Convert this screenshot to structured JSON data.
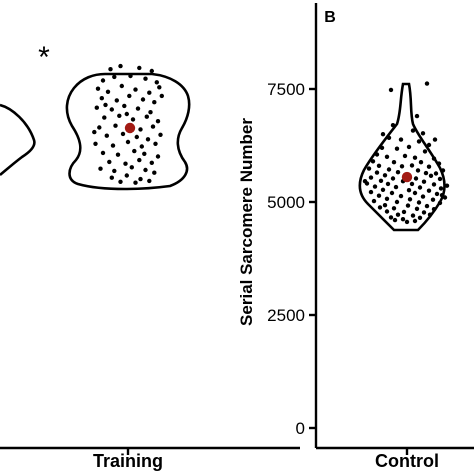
{
  "chart_data": [
    {
      "panel": "",
      "type": "scatter",
      "categories": [
        "Training"
      ],
      "annotation": "*",
      "note": "partial panel: truncated on the left edge; y-axis not visible",
      "violins": [
        {
          "category": "Training",
          "y_range": [
            5300,
            7950
          ],
          "mean": 6550
        },
        {
          "category": "",
          "y_range": [
            5450,
            6950
          ],
          "mean": null
        }
      ],
      "points": {
        "Training": [
          [
            -0.14,
            7850
          ],
          [
            -0.06,
            7920
          ],
          [
            0.09,
            7880
          ],
          [
            0.19,
            7810
          ],
          [
            -0.2,
            7600
          ],
          [
            -0.11,
            7680
          ],
          [
            0.02,
            7700
          ],
          [
            0.14,
            7640
          ],
          [
            0.23,
            7560
          ],
          [
            -0.24,
            7420
          ],
          [
            -0.16,
            7350
          ],
          [
            -0.05,
            7480
          ],
          [
            0.06,
            7400
          ],
          [
            0.17,
            7330
          ],
          [
            0.25,
            7450
          ],
          [
            -0.21,
            7210
          ],
          [
            -0.09,
            7160
          ],
          [
            0.01,
            7260
          ],
          [
            0.12,
            7180
          ],
          [
            0.21,
            7120
          ],
          [
            -0.25,
            7000
          ],
          [
            -0.13,
            6960
          ],
          [
            -0.03,
            7040
          ],
          [
            0.08,
            6980
          ],
          [
            0.18,
            6900
          ],
          [
            -0.19,
            6780
          ],
          [
            -0.07,
            6820
          ],
          [
            0.04,
            6740
          ],
          [
            0.15,
            6800
          ],
          [
            0.24,
            6700
          ],
          [
            -0.23,
            6560
          ],
          [
            -0.1,
            6600
          ],
          [
            0.1,
            6520
          ],
          [
            0.2,
            6580
          ],
          [
            -0.17,
            6380
          ],
          [
            -0.04,
            6420
          ],
          [
            0.07,
            6350
          ],
          [
            0.16,
            6300
          ],
          [
            0.26,
            6400
          ],
          [
            -0.26,
            6200
          ],
          [
            -0.12,
            6160
          ],
          [
            0.0,
            6240
          ],
          [
            0.11,
            6140
          ],
          [
            0.22,
            6200
          ],
          [
            -0.2,
            6000
          ],
          [
            -0.08,
            5960
          ],
          [
            0.05,
            6040
          ],
          [
            0.13,
            5980
          ],
          [
            0.24,
            5920
          ],
          [
            -0.15,
            5800
          ],
          [
            -0.02,
            5760
          ],
          [
            0.09,
            5840
          ],
          [
            0.19,
            5780
          ],
          [
            -0.22,
            5650
          ],
          [
            -0.11,
            5600
          ],
          [
            0.03,
            5680
          ],
          [
            0.14,
            5620
          ],
          [
            0.21,
            5560
          ],
          [
            -0.13,
            5450
          ],
          [
            -0.01,
            5500
          ],
          [
            0.1,
            5420
          ],
          [
            0.17,
            5380
          ],
          [
            -0.06,
            5360
          ],
          [
            0.06,
            5340
          ],
          [
            -0.18,
            7060
          ],
          [
            0.27,
            7260
          ],
          [
            -0.01,
            6860
          ],
          [
            -0.27,
            6460
          ]
        ]
      }
    },
    {
      "panel": "B",
      "type": "scatter",
      "categories": [
        "Control"
      ],
      "ylabel": "Serial Sarcomere Number",
      "y_ticks": [
        0,
        2500,
        5000,
        7500
      ],
      "ylim": [
        0,
        9400
      ],
      "violins": [
        {
          "category": "Control",
          "y_range": [
            4450,
            7750
          ],
          "mean": 5550
        }
      ],
      "points": {
        "Control": [
          [
            -0.16,
            7480
          ],
          [
            0.2,
            7620
          ],
          [
            0.1,
            6900
          ],
          [
            -0.14,
            6700
          ],
          [
            0.16,
            6520
          ],
          [
            0.06,
            6580
          ],
          [
            -0.18,
            6420
          ],
          [
            -0.06,
            6380
          ],
          [
            0.12,
            6340
          ],
          [
            0.22,
            6260
          ],
          [
            -0.25,
            6200
          ],
          [
            -0.1,
            6180
          ],
          [
            0.02,
            6220
          ],
          [
            0.18,
            6120
          ],
          [
            -0.3,
            6050
          ],
          [
            -0.2,
            6000
          ],
          [
            -0.02,
            6020
          ],
          [
            0.08,
            5980
          ],
          [
            0.27,
            5960
          ],
          [
            -0.34,
            5900
          ],
          [
            -0.13,
            5880
          ],
          [
            0.14,
            5880
          ],
          [
            0.32,
            5850
          ],
          [
            -0.28,
            5800
          ],
          [
            -0.05,
            5790
          ],
          [
            0.05,
            5810
          ],
          [
            0.22,
            5780
          ],
          [
            -0.38,
            5740
          ],
          [
            -0.18,
            5720
          ],
          [
            0.11,
            5700
          ],
          [
            0.36,
            5700
          ],
          [
            -0.3,
            5650
          ],
          [
            -0.09,
            5660
          ],
          [
            0.19,
            5640
          ],
          [
            0.29,
            5630
          ],
          [
            -0.22,
            5590
          ],
          [
            0.0,
            5600
          ],
          [
            0.24,
            5580
          ],
          [
            -0.36,
            5540
          ],
          [
            -0.14,
            5520
          ],
          [
            0.09,
            5520
          ],
          [
            0.33,
            5510
          ],
          [
            -0.26,
            5470
          ],
          [
            -0.04,
            5460
          ],
          [
            0.17,
            5450
          ],
          [
            -0.4,
            5410
          ],
          [
            -0.19,
            5400
          ],
          [
            0.05,
            5400
          ],
          [
            0.27,
            5390
          ],
          [
            0.4,
            5360
          ],
          [
            -0.32,
            5340
          ],
          [
            -0.11,
            5330
          ],
          [
            0.13,
            5320
          ],
          [
            0.34,
            5300
          ],
          [
            -0.24,
            5270
          ],
          [
            0.02,
            5260
          ],
          [
            0.22,
            5250
          ],
          [
            -0.36,
            5220
          ],
          [
            -0.15,
            5200
          ],
          [
            0.08,
            5200
          ],
          [
            0.3,
            5180
          ],
          [
            -0.28,
            5140
          ],
          [
            -0.06,
            5130
          ],
          [
            0.16,
            5120
          ],
          [
            0.38,
            5100
          ],
          [
            -0.2,
            5070
          ],
          [
            0.03,
            5060
          ],
          [
            0.26,
            5050
          ],
          [
            -0.33,
            5020
          ],
          [
            -0.1,
            5000
          ],
          [
            0.12,
            4990
          ],
          [
            0.33,
            4980
          ],
          [
            -0.22,
            4930
          ],
          [
            0.01,
            4920
          ],
          [
            0.2,
            4910
          ],
          [
            -0.13,
            4860
          ],
          [
            0.1,
            4850
          ],
          [
            0.27,
            4840
          ],
          [
            -0.2,
            4790
          ],
          [
            -0.03,
            4780
          ],
          [
            0.17,
            4770
          ],
          [
            -0.09,
            4720
          ],
          [
            0.06,
            4700
          ],
          [
            -0.16,
            4660
          ],
          [
            0.13,
            4650
          ],
          [
            -0.04,
            4620
          ],
          [
            0.0,
            4560
          ],
          [
            0.08,
            4580
          ],
          [
            -0.12,
            4600
          ],
          [
            0.23,
            4720
          ],
          [
            -0.27,
            4880
          ],
          [
            0.35,
            5150
          ],
          [
            -0.42,
            5460
          ],
          [
            0.28,
            6380
          ],
          [
            -0.24,
            6500
          ]
        ]
      }
    }
  ],
  "style": {
    "point_color": "#000000",
    "mean_color": "#a31b14",
    "axis_color": "#000000"
  }
}
